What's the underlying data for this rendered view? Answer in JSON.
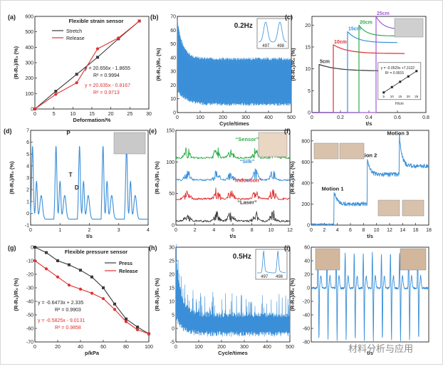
{
  "watermark": "材料分析与应用",
  "colors": {
    "black": "#3a3a3a",
    "red": "#e03030",
    "blue": "#3a8fd8",
    "green": "#2eae4a",
    "purple": "#a35ad8",
    "gray": "#777777"
  },
  "chart_data": [
    {
      "id": "a",
      "type": "line",
      "label": "(a)",
      "title": "Flexible strain sensor",
      "xlabel": "Deformation/%",
      "ylabel": "(R-R₀)/R₀ (%)",
      "xlim": [
        0,
        30
      ],
      "ylim": [
        0,
        600
      ],
      "xticks": [
        0,
        5,
        10,
        15,
        20,
        25,
        30
      ],
      "yticks": [
        0,
        100,
        200,
        300,
        400,
        500,
        600
      ],
      "series": [
        {
          "name": "Stretch",
          "color": "#3a3a3a",
          "marker": "square",
          "x": [
            0,
            5.5,
            11,
            16.5,
            22,
            27.5
          ],
          "y": [
            0,
            115,
            225,
            335,
            455,
            570
          ]
        },
        {
          "name": "Release",
          "color": "#e03030",
          "marker": "circle",
          "x": [
            0,
            5.5,
            11,
            16.5,
            22,
            27.5
          ],
          "y": [
            0,
            95,
            170,
            390,
            460,
            570
          ]
        }
      ],
      "annotations": [
        "y = 20.656x - 1.8655",
        "R² = 0.9994",
        "y = 20.635x - 0.8167",
        "R² = 0.9713"
      ]
    },
    {
      "id": "b",
      "type": "line",
      "label": "(b)",
      "annotation": "0.2Hz",
      "xlabel": "Cycle/times",
      "ylabel": "(R-R₀)/R₀ (%)",
      "xlim": [
        0,
        500
      ],
      "ylim": [
        0,
        70
      ],
      "xticks": [
        0,
        100,
        200,
        300,
        400,
        500
      ],
      "yticks": [
        0,
        10,
        20,
        30,
        40,
        50,
        60,
        70
      ],
      "inset_labels": [
        "497",
        "498"
      ],
      "upper_envelope": [
        [
          0,
          68
        ],
        [
          20,
          52
        ],
        [
          80,
          45
        ],
        [
          500,
          40
        ]
      ],
      "lower_envelope": [
        [
          0,
          15
        ],
        [
          60,
          8
        ],
        [
          500,
          5
        ]
      ]
    },
    {
      "id": "c",
      "type": "line",
      "label": "(c)",
      "xlabel": "t/s",
      "ylabel": "(R-R₀)/R₀ (%)",
      "xlim": [
        0,
        0.8
      ],
      "ylim": [
        0,
        22
      ],
      "xticks": [
        0,
        0.2,
        0.4,
        0.6,
        0.8
      ],
      "yticks": [
        0,
        5,
        10,
        15,
        20
      ],
      "series": [
        {
          "name": "5cm",
          "color": "#3a3a3a",
          "start": 0.05,
          "end": 0.7,
          "peak": 11,
          "tail": 9.5
        },
        {
          "name": "10cm",
          "color": "#e03030",
          "start": 0.15,
          "end": 0.65,
          "peak": 15.5,
          "tail": 13.5
        },
        {
          "name": "15cm",
          "color": "#3a8fd8",
          "start": 0.25,
          "end": 0.6,
          "peak": 18.5,
          "tail": 16
        },
        {
          "name": "20cm",
          "color": "#2eae4a",
          "start": 0.33,
          "end": 0.6,
          "peak": 20,
          "tail": 17.5
        },
        {
          "name": "25cm",
          "color": "#a35ad8",
          "start": 0.45,
          "end": 0.7,
          "peak": 22,
          "tail": 19
        }
      ],
      "inset": {
        "equation": "y = -0.0529x +7.3122",
        "r2": "R² = 0.9915",
        "xlabel": "H/cm",
        "xticks": [
          5,
          10,
          15,
          20,
          25
        ],
        "yticks": [
          0,
          0.5,
          1.0,
          1.5,
          2.0
        ]
      }
    },
    {
      "id": "d",
      "type": "line",
      "label": "(d)",
      "xlabel": "t/s",
      "ylabel": "(R-R₀)/R₀ (%)",
      "xlim": [
        0,
        4
      ],
      "ylim": [
        -1,
        7
      ],
      "xticks": [
        0,
        1,
        2,
        3,
        4
      ],
      "yticks": [
        -1,
        0,
        1,
        2,
        3,
        4,
        5,
        6,
        7
      ],
      "peak_labels": [
        "P",
        "T",
        "D"
      ],
      "period_s": 0.8
    },
    {
      "id": "e",
      "type": "line",
      "label": "(e)",
      "xlabel": "t/s",
      "ylabel": "(R-R₀)/R₀ (%)",
      "xlim": [
        0,
        12
      ],
      "ylim": [
        0,
        150
      ],
      "xticks": [
        0,
        2,
        4,
        6,
        8,
        10,
        12
      ],
      "yticks": [
        0,
        50,
        100,
        150
      ],
      "series": [
        {
          "name": "“Sensor”",
          "color": "#2eae4a",
          "offset": 105
        },
        {
          "name": "“Silk”",
          "color": "#3a8fd8",
          "offset": 70
        },
        {
          "name": "“Induction”",
          "color": "#e03030",
          "offset": 40
        },
        {
          "name": "“Laser”",
          "color": "#3a3a3a",
          "offset": 5
        }
      ]
    },
    {
      "id": "f",
      "type": "line",
      "label": "(f)",
      "xlabel": "t/s",
      "ylabel": "(R-R₀)/R₀ (%)",
      "xlim": [
        0,
        18
      ],
      "ylim": [
        0,
        900
      ],
      "xticks": [
        0,
        2,
        4,
        6,
        8,
        10,
        12,
        14,
        16,
        18
      ],
      "yticks": [
        0,
        200,
        400,
        600,
        800
      ],
      "motions": [
        {
          "name": "Motion 1",
          "t": 3.5,
          "level": 180,
          "peak": 300
        },
        {
          "name": "Motion 2",
          "t": 8.6,
          "level": 460,
          "peak": 620
        },
        {
          "name": "Motion 3",
          "t": 13.5,
          "level": 540,
          "peak": 830
        }
      ]
    },
    {
      "id": "g",
      "type": "line",
      "label": "(g)",
      "title": "Flexible pressure sensor",
      "xlabel": "p/kPa",
      "ylabel": "(R-R₀)/R₀ (%)",
      "xlim": [
        0,
        100
      ],
      "ylim": [
        -70,
        0
      ],
      "xticks": [
        0,
        20,
        40,
        60,
        80,
        100
      ],
      "yticks": [
        0,
        -10,
        -20,
        -30,
        -40,
        -50,
        -60,
        -70
      ],
      "series": [
        {
          "name": "Press",
          "color": "#3a3a3a",
          "marker": "square",
          "x": [
            0,
            10,
            20,
            30,
            40,
            50,
            60,
            70,
            80,
            90,
            100
          ],
          "y": [
            0,
            -4,
            -10,
            -13,
            -17,
            -22,
            -30,
            -42,
            -53,
            -59,
            -64
          ]
        },
        {
          "name": "Release",
          "color": "#e03030",
          "marker": "circle",
          "x": [
            0,
            10,
            20,
            30,
            40,
            50,
            60,
            70,
            80,
            90,
            100
          ],
          "y": [
            -10,
            -16,
            -22,
            -28,
            -31,
            -34,
            -38,
            -46,
            -55,
            -61,
            -64
          ]
        }
      ],
      "annotations": [
        "y = -0.6473x + 2.335",
        "R² = 0.9903",
        "y = -0.5825x - 9.0131",
        "R² = 0.9858"
      ]
    },
    {
      "id": "h",
      "type": "line",
      "label": "(h)",
      "annotation": "0.5Hz",
      "xlabel": "Cycle/times",
      "ylabel": "(R-R₀)/R₀ (%)",
      "xlim": [
        0,
        500
      ],
      "ylim": [
        -5,
        30
      ],
      "xticks": [
        0,
        100,
        200,
        300,
        400,
        500
      ],
      "yticks": [
        -5,
        0,
        5,
        10,
        15,
        20,
        25,
        30
      ],
      "inset_labels": [
        "497",
        "498"
      ]
    },
    {
      "id": "i",
      "type": "line",
      "label": "(i)",
      "xlabel": "t/s",
      "ylabel": "(R-R₀)/R₀ (%)",
      "xlim": [
        0,
        14
      ],
      "ylim": [
        -80,
        60
      ],
      "xticks": [],
      "yticks": [
        60,
        40,
        20,
        0,
        -20,
        -40,
        -60,
        -80
      ],
      "pulses": 12
    }
  ]
}
